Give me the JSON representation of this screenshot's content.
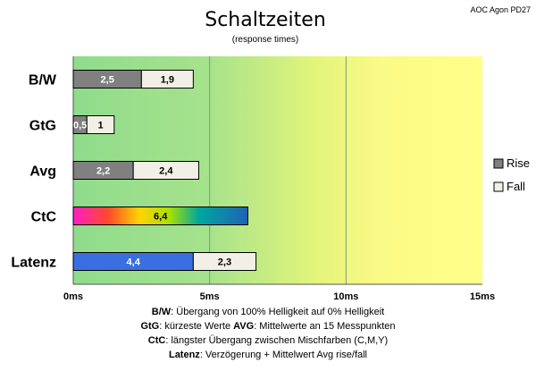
{
  "chart_data": {
    "type": "bar",
    "orientation": "horizontal",
    "stacked": true,
    "title": "Schaltzeiten",
    "subtitle": "(response times)",
    "corner_label": "AOC Agon PD27",
    "categories": [
      "B/W",
      "GtG",
      "Avg",
      "CtC",
      "Latenz"
    ],
    "series": [
      {
        "name": "Rise",
        "values": [
          2.5,
          0.5,
          2.2,
          null,
          null
        ],
        "labels": [
          "2,5",
          "0,5",
          "2,2",
          "",
          ""
        ],
        "color": "#808080"
      },
      {
        "name": "Fall",
        "values": [
          1.9,
          1,
          2.4,
          null,
          2.3
        ],
        "labels": [
          "1,9",
          "1",
          "2,4",
          "",
          "2,3"
        ],
        "color": "#f2efe6"
      },
      {
        "name": "",
        "values": [
          null,
          null,
          null,
          6.4,
          null
        ],
        "labels": [
          "",
          "",
          "",
          "6,4",
          ""
        ],
        "color": "rainbow"
      },
      {
        "name": "",
        "values": [
          null,
          null,
          null,
          null,
          4.4
        ],
        "labels": [
          "",
          "",
          "",
          "",
          "4,4"
        ],
        "color": "#3a6fe0"
      }
    ],
    "xlim": [
      0,
      15
    ],
    "xticks": [
      0,
      5,
      10,
      15
    ],
    "xtick_labels": [
      "0ms",
      "5ms",
      "10ms",
      "15ms"
    ],
    "grid": true,
    "background": "green-to-yellow gradient",
    "legend": {
      "position": "right",
      "entries": [
        "Rise",
        "Fall"
      ]
    }
  },
  "notes": [
    [
      {
        "t": "B/W",
        "b": true
      },
      {
        "t": ":  Übergang von 100% Helligkeit auf 0% Helligkeit",
        "b": false
      }
    ],
    [
      {
        "t": "GtG",
        "b": true
      },
      {
        "t": ": kürzeste  Werte        ",
        "b": false
      },
      {
        "t": "AVG",
        "b": true
      },
      {
        "t": ": Mittelwerte  an 15 Messpunkten",
        "b": false
      }
    ],
    [
      {
        "t": "CtC",
        "b": true
      },
      {
        "t": ": längster Übergang  zwischen Mischfarben  (C,M,Y)",
        "b": false
      }
    ],
    [
      {
        "t": "Latenz",
        "b": true
      },
      {
        "t": ": Verzögerung  + Mittelwert Avg rise/fall",
        "b": false
      }
    ]
  ]
}
